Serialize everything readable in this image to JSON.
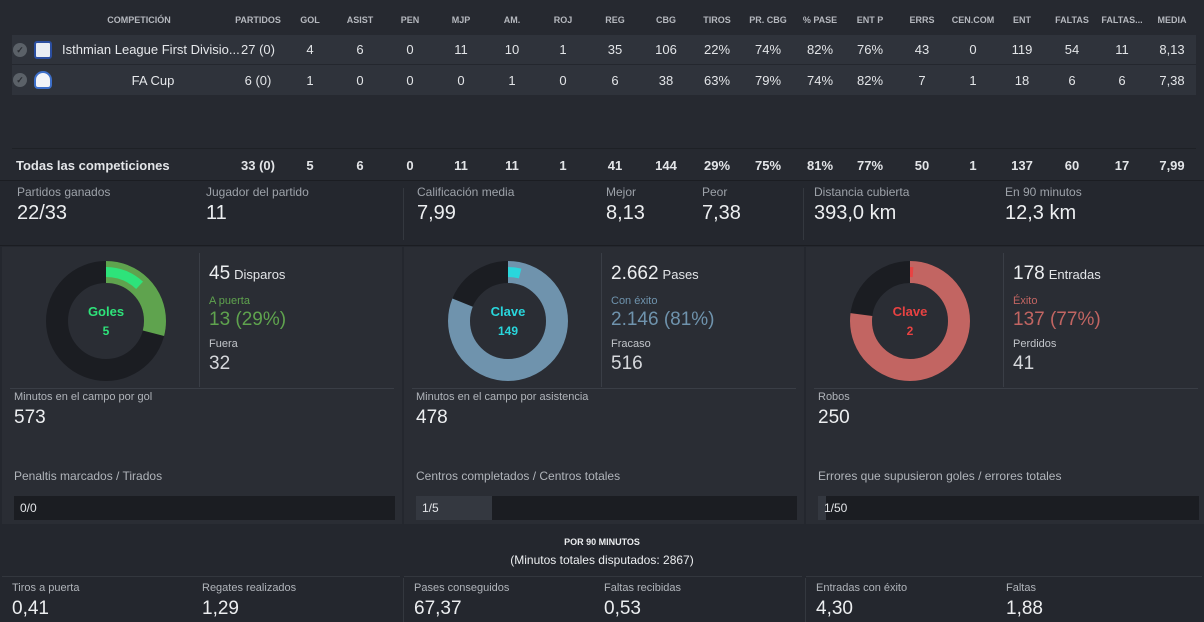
{
  "colors": {
    "goals_green": "#5fa34e",
    "goals_accent": "#2ee37a",
    "passes_blue": "#6f93ad",
    "passes_accent": "#29d6dc",
    "tackles_red": "#c26562",
    "tackles_accent": "#e84242",
    "track": "#1b1d22"
  },
  "table": {
    "headers": [
      "COMPETICIÓN",
      "PARTIDOS",
      "GOL",
      "ASIST",
      "PEN",
      "MJP",
      "AM.",
      "ROJ",
      "REG",
      "CBG",
      "TIROS",
      "PR. CBG",
      "% PASE",
      "ENT P",
      "ERRS",
      "CEN.COM",
      "ENT",
      "FALTAS",
      "FALTAS...",
      "MEDIA"
    ],
    "rows": [
      {
        "check_icon": "check-icon",
        "crest_icon": "club-crest-icon",
        "name": "Isthmian League First Divisio...",
        "values": [
          "27 (0)",
          "4",
          "6",
          "0",
          "11",
          "10",
          "1",
          "35",
          "106",
          "22%",
          "74%",
          "82%",
          "76%",
          "43",
          "0",
          "119",
          "54",
          "11",
          "8,13"
        ]
      },
      {
        "check_icon": "check-icon",
        "crest_icon": "cup-crest-icon",
        "name": "FA Cup",
        "values": [
          "6 (0)",
          "1",
          "0",
          "0",
          "0",
          "1",
          "0",
          "6",
          "38",
          "63%",
          "79%",
          "74%",
          "82%",
          "7",
          "1",
          "18",
          "6",
          "6",
          "7,38"
        ]
      }
    ],
    "total": {
      "name": "Todas las competiciones",
      "values": [
        "33 (0)",
        "5",
        "6",
        "0",
        "11",
        "11",
        "1",
        "41",
        "144",
        "29%",
        "75%",
        "81%",
        "77%",
        "50",
        "1",
        "137",
        "60",
        "17",
        "7,99"
      ]
    }
  },
  "summary": {
    "games_won_label": "Partidos ganados",
    "games_won_value": "22/33",
    "pom_label": "Jugador del partido",
    "pom_value": "11",
    "avg_rating_label": "Calificación media",
    "avg_rating_value": "7,99",
    "best_label": "Mejor",
    "best_value": "8,13",
    "worst_label": "Peor",
    "worst_value": "7,38",
    "distance_label": "Distancia cubierta",
    "distance_value": "393,0 km",
    "per90_label": "En 90 minutos",
    "per90_value": "12,3 km"
  },
  "panels": {
    "shooting": {
      "donut_label": "Goles",
      "donut_value": "5",
      "donut_fraction_main": 0.29,
      "donut_fraction_accent": 0.12,
      "total_value": "45",
      "total_label": "Disparos",
      "success_label": "A puerta",
      "success_value": "13 (29%)",
      "fail_label": "Fuera",
      "fail_value": "32",
      "stat_label": "Minutos en el campo por gol",
      "stat_value": "573",
      "ratio_label": "Penaltis marcados / Tirados",
      "ratio_value": "0/0",
      "ratio_fraction": 0
    },
    "passing": {
      "donut_label": "Clave",
      "donut_value": "149",
      "donut_fraction_main": 0.81,
      "donut_fraction_accent": 0.04,
      "total_value": "2.662",
      "total_label": "Pases",
      "success_label": "Con éxito",
      "success_value": "2.146 (81%)",
      "fail_label": "Fracaso",
      "fail_value": "516",
      "stat_label": "Minutos en el campo por asistencia",
      "stat_value": "478",
      "ratio_label": "Centros completados / Centros totales",
      "ratio_value": "1/5",
      "ratio_fraction": 0.2
    },
    "tackling": {
      "donut_label": "Clave",
      "donut_value": "2",
      "donut_fraction_main": 0.77,
      "donut_fraction_accent": 0.01,
      "total_value": "178",
      "total_label": "Entradas",
      "success_label": "Éxito",
      "success_value": "137 (77%)",
      "fail_label": "Perdidos",
      "fail_value": "41",
      "stat_label": "Robos",
      "stat_value": "250",
      "ratio_label": "Errores que supusieron goles / errores totales",
      "ratio_value": "1/50",
      "ratio_fraction": 0.02
    }
  },
  "per90": {
    "title": "POR 90 MINUTOS",
    "subtitle": "(Minutos totales disputados: 2867)",
    "items": [
      {
        "label": "Tiros a puerta",
        "value": "0,41"
      },
      {
        "label": "Regates realizados",
        "value": "1,29"
      },
      {
        "label": "Pases conseguidos",
        "value": "67,37"
      },
      {
        "label": "Faltas recibidas",
        "value": "0,53"
      },
      {
        "label": "Entradas con éxito",
        "value": "4,30"
      },
      {
        "label": "Faltas",
        "value": "1,88"
      }
    ]
  }
}
